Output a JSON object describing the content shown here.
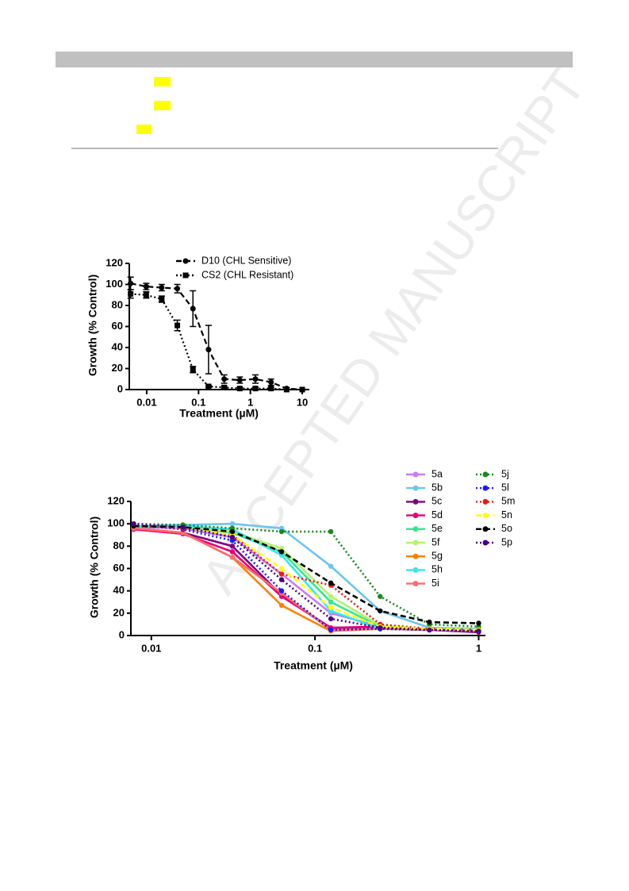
{
  "watermark": "ACCEPTED MANUSCRIPT",
  "chart_data": [
    {
      "type": "line",
      "log_x": true,
      "ylabel": "Growth (% Control)",
      "xlabel": "Treatment (µM)",
      "x": [
        0.0049,
        0.0098,
        0.0195,
        0.039,
        0.078,
        0.156,
        0.3125,
        0.625,
        1.25,
        2.5,
        5,
        10
      ],
      "xlim": [
        0.00462,
        13.7
      ],
      "xticks": [
        0.01,
        0.1,
        1,
        10
      ],
      "ylim": [
        0,
        120
      ],
      "yticks": [
        0,
        20,
        40,
        60,
        80,
        100,
        120
      ],
      "legend": "top",
      "series": [
        {
          "name": "D10 (CHL Sensitive)",
          "color": "#000000",
          "dash": "dashed",
          "marker": "circle",
          "values": [
            101,
            98,
            97,
            96,
            77,
            38,
            10,
            9,
            10,
            7,
            1,
            0
          ],
          "errors": [
            6,
            3,
            3,
            4,
            17,
            23,
            4,
            3,
            4,
            3,
            1,
            0
          ]
        },
        {
          "name": "CS2 (CHL Resistant)",
          "color": "#000000",
          "dash": "dotted",
          "marker": "square",
          "values": [
            91,
            90,
            86,
            61,
            19,
            3,
            2,
            1,
            1,
            1,
            0,
            0
          ],
          "errors": [
            4,
            3,
            3,
            5,
            3,
            1,
            1,
            1,
            1,
            1,
            0,
            0
          ]
        }
      ]
    },
    {
      "type": "line",
      "log_x": true,
      "ylabel": "Growth (% Control)",
      "xlabel": "Treatment (µM)",
      "x": [
        0.0078,
        0.0156,
        0.03125,
        0.0625,
        0.125,
        0.25,
        0.5,
        1
      ],
      "xlim": [
        0.0075,
        1.1
      ],
      "xticks": [
        0.01,
        0.1,
        1
      ],
      "ylim": [
        0,
        120
      ],
      "yticks": [
        0,
        20,
        40,
        60,
        80,
        100,
        120
      ],
      "legend": "top-right-outside",
      "series": [
        {
          "name": "5a",
          "color": "#c77cff",
          "dash": "solid",
          "values": [
            97,
            96,
            88,
            55,
            20,
            8,
            6,
            5
          ]
        },
        {
          "name": "5b",
          "color": "#6cc5f0",
          "dash": "solid",
          "values": [
            98,
            99,
            100,
            96,
            62,
            22,
            7,
            6
          ]
        },
        {
          "name": "5c",
          "color": "#800080",
          "dash": "solid",
          "values": [
            96,
            92,
            80,
            36,
            6,
            7,
            5,
            3
          ]
        },
        {
          "name": "5d",
          "color": "#e6007e",
          "dash": "solid",
          "values": [
            95,
            91,
            75,
            35,
            7,
            8,
            6,
            4
          ]
        },
        {
          "name": "5e",
          "color": "#33e88c",
          "dash": "solid",
          "values": [
            98,
            97,
            92,
            75,
            30,
            8,
            6,
            5
          ]
        },
        {
          "name": "5f",
          "color": "#b7f070",
          "dash": "solid",
          "values": [
            98,
            97,
            93,
            78,
            35,
            9,
            6,
            5
          ]
        },
        {
          "name": "5g",
          "color": "#ff8000",
          "dash": "solid",
          "values": [
            96,
            92,
            70,
            27,
            4,
            6,
            5,
            4
          ]
        },
        {
          "name": "5h",
          "color": "#33e8e8",
          "dash": "solid",
          "values": [
            97,
            98,
            95,
            72,
            22,
            6,
            5,
            5
          ]
        },
        {
          "name": "5i",
          "color": "#ff6b6b",
          "dash": "solid",
          "values": [
            96,
            92,
            70,
            38,
            5,
            6,
            5,
            4
          ]
        },
        {
          "name": "5j",
          "color": "#1a8a1a",
          "dash": "dotted",
          "values": [
            100,
            99,
            96,
            93,
            93,
            35,
            10,
            8
          ]
        },
        {
          "name": "5l",
          "color": "#1a1aff",
          "dash": "dotted",
          "values": [
            99,
            95,
            85,
            40,
            5,
            6,
            5,
            4
          ]
        },
        {
          "name": "5m",
          "color": "#e81a1a",
          "dash": "dotted",
          "values": [
            98,
            96,
            90,
            55,
            45,
            10,
            6,
            5
          ]
        },
        {
          "name": "5n",
          "color": "#ffff00",
          "dash": "dashed",
          "values": [
            98,
            97,
            90,
            60,
            25,
            8,
            6,
            5
          ]
        },
        {
          "name": "5o",
          "color": "#000000",
          "dash": "dashed",
          "values": [
            98,
            97,
            93,
            75,
            47,
            22,
            12,
            11
          ]
        },
        {
          "name": "5p",
          "color": "#4b0082",
          "dash": "dotted",
          "values": [
            100,
            97,
            88,
            50,
            15,
            7,
            5,
            4
          ]
        }
      ]
    }
  ]
}
